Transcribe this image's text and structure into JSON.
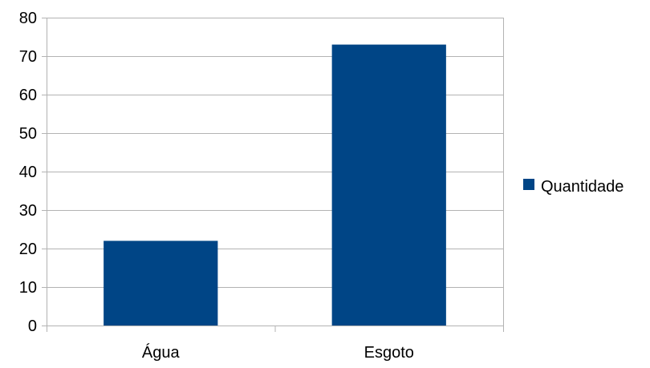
{
  "chart_data": {
    "type": "bar",
    "categories": [
      "Água",
      "Esgoto"
    ],
    "series": [
      {
        "name": "Quantidade",
        "values": [
          22,
          73
        ],
        "color": "#004586"
      }
    ],
    "ylim": [
      0,
      80
    ],
    "yticks": [
      0,
      10,
      20,
      30,
      40,
      50,
      60,
      70,
      80
    ],
    "grid": true,
    "legend_position": "right"
  }
}
